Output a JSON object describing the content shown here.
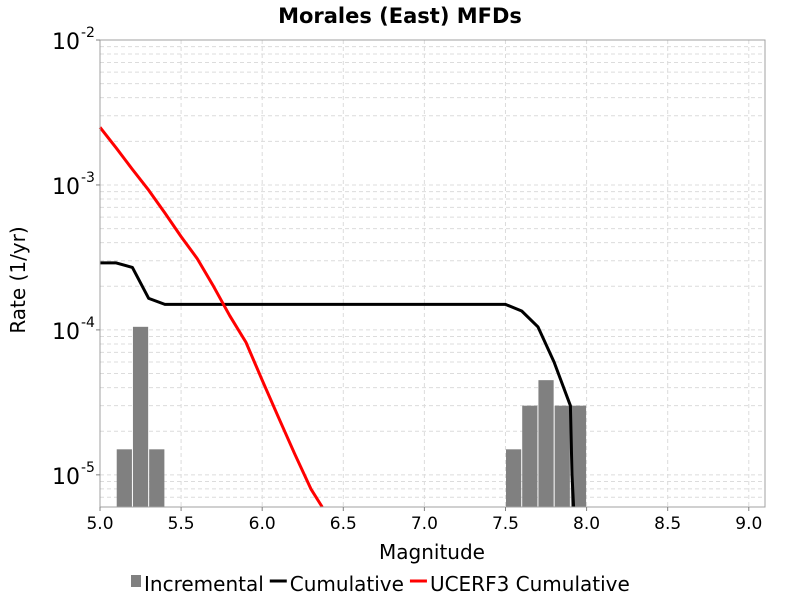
{
  "chart_data": {
    "type": "bar",
    "title": "Morales (East) MFDs",
    "xlabel": "Magnitude",
    "ylabel": "Rate (1/yr)",
    "xlim": [
      5.0,
      9.1
    ],
    "ylim": [
      6e-06,
      0.01
    ],
    "yscale": "log",
    "x_ticks": [
      "5.0",
      "5.5",
      "6.0",
      "6.5",
      "7.0",
      "7.5",
      "8.0",
      "8.5",
      "9.0"
    ],
    "y_ticks": [
      {
        "base": "10",
        "exp": "-5",
        "value": 1e-05
      },
      {
        "base": "10",
        "exp": "-4",
        "value": 0.0001
      },
      {
        "base": "10",
        "exp": "-3",
        "value": 0.001
      },
      {
        "base": "10",
        "exp": "-2",
        "value": 0.01
      }
    ],
    "grid": true,
    "legend_position": "bottom",
    "bar_width": 0.1,
    "series": [
      {
        "name": "Incremental",
        "kind": "bar",
        "color": "#808080",
        "x": [
          5.15,
          5.25,
          5.35,
          7.55,
          7.65,
          7.75,
          7.85,
          7.95
        ],
        "y": [
          1.5e-05,
          0.000105,
          1.5e-05,
          1.5e-05,
          3e-05,
          4.5e-05,
          3e-05,
          3e-05
        ]
      },
      {
        "name": "Cumulative",
        "kind": "line",
        "color": "#000000",
        "x": [
          5.0,
          5.1,
          5.2,
          5.3,
          5.4,
          5.5,
          7.5,
          7.6,
          7.7,
          7.8,
          7.9,
          7.91,
          7.92
        ],
        "y": [
          0.00029,
          0.00029,
          0.00027,
          0.000165,
          0.00015,
          0.00015,
          0.00015,
          0.000135,
          0.000105,
          6e-05,
          3e-05,
          1e-05,
          6e-06
        ]
      },
      {
        "name": "UCERF3 Cumulative",
        "kind": "line",
        "color": "#ff0000",
        "x": [
          5.0,
          5.1,
          5.2,
          5.3,
          5.4,
          5.5,
          5.6,
          5.7,
          5.8,
          5.9,
          6.0,
          6.1,
          6.2,
          6.3,
          6.37
        ],
        "y": [
          0.0025,
          0.0018,
          0.00128,
          0.00092,
          0.00064,
          0.00044,
          0.00031,
          0.0002,
          0.000125,
          8.2e-05,
          4.5e-05,
          2.5e-05,
          1.4e-05,
          8e-06,
          6e-06
        ]
      }
    ]
  }
}
